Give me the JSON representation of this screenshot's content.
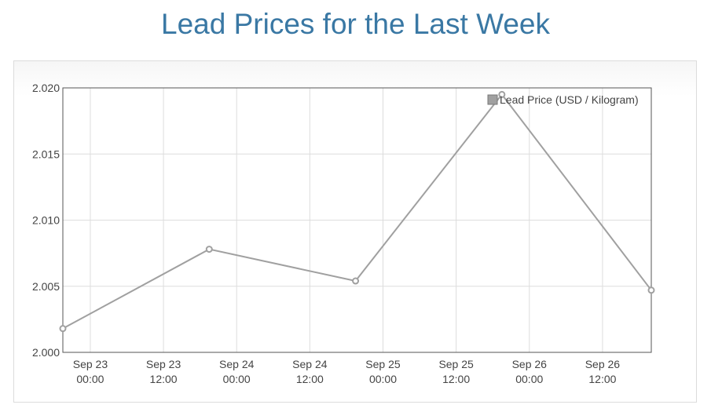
{
  "header": {
    "title": "Lead Prices for the Last Week"
  },
  "chart_data": {
    "type": "line",
    "title": "Lead Prices for the Last Week",
    "xlabel": "",
    "ylabel": "",
    "ylim": [
      2.0,
      2.02
    ],
    "y_ticks": [
      "2.000",
      "2.005",
      "2.010",
      "2.015",
      "2.020"
    ],
    "xlim": [
      "2024-09-22 19:30",
      "2024-09-26 20:00"
    ],
    "x_ticks": [
      {
        "date": "2024-09-23 00:00",
        "label": [
          "Sep 23",
          "00:00"
        ]
      },
      {
        "date": "2024-09-23 12:00",
        "label": [
          "Sep 23",
          "12:00"
        ]
      },
      {
        "date": "2024-09-24 00:00",
        "label": [
          "Sep 24",
          "00:00"
        ]
      },
      {
        "date": "2024-09-24 12:00",
        "label": [
          "Sep 24",
          "12:00"
        ]
      },
      {
        "date": "2024-09-25 00:00",
        "label": [
          "Sep 25",
          "00:00"
        ]
      },
      {
        "date": "2024-09-25 12:00",
        "label": [
          "Sep 25",
          "12:00"
        ]
      },
      {
        "date": "2024-09-26 00:00",
        "label": [
          "Sep 26",
          "00:00"
        ]
      },
      {
        "date": "2024-09-26 12:00",
        "label": [
          "Sep 26",
          "12:00"
        ]
      }
    ],
    "grid": true,
    "legend": "top-right",
    "series": [
      {
        "name": "Lead Price (USD / Kilogram)",
        "color": "#a0a0a0",
        "points": [
          {
            "x": "2024-09-22 19:30",
            "y": 2.0018
          },
          {
            "x": "2024-09-23 19:30",
            "y": 2.0078
          },
          {
            "x": "2024-09-24 19:30",
            "y": 2.0054
          },
          {
            "x": "2024-09-25 19:30",
            "y": 2.0195
          },
          {
            "x": "2024-09-26 20:00",
            "y": 2.0047
          }
        ]
      }
    ]
  }
}
